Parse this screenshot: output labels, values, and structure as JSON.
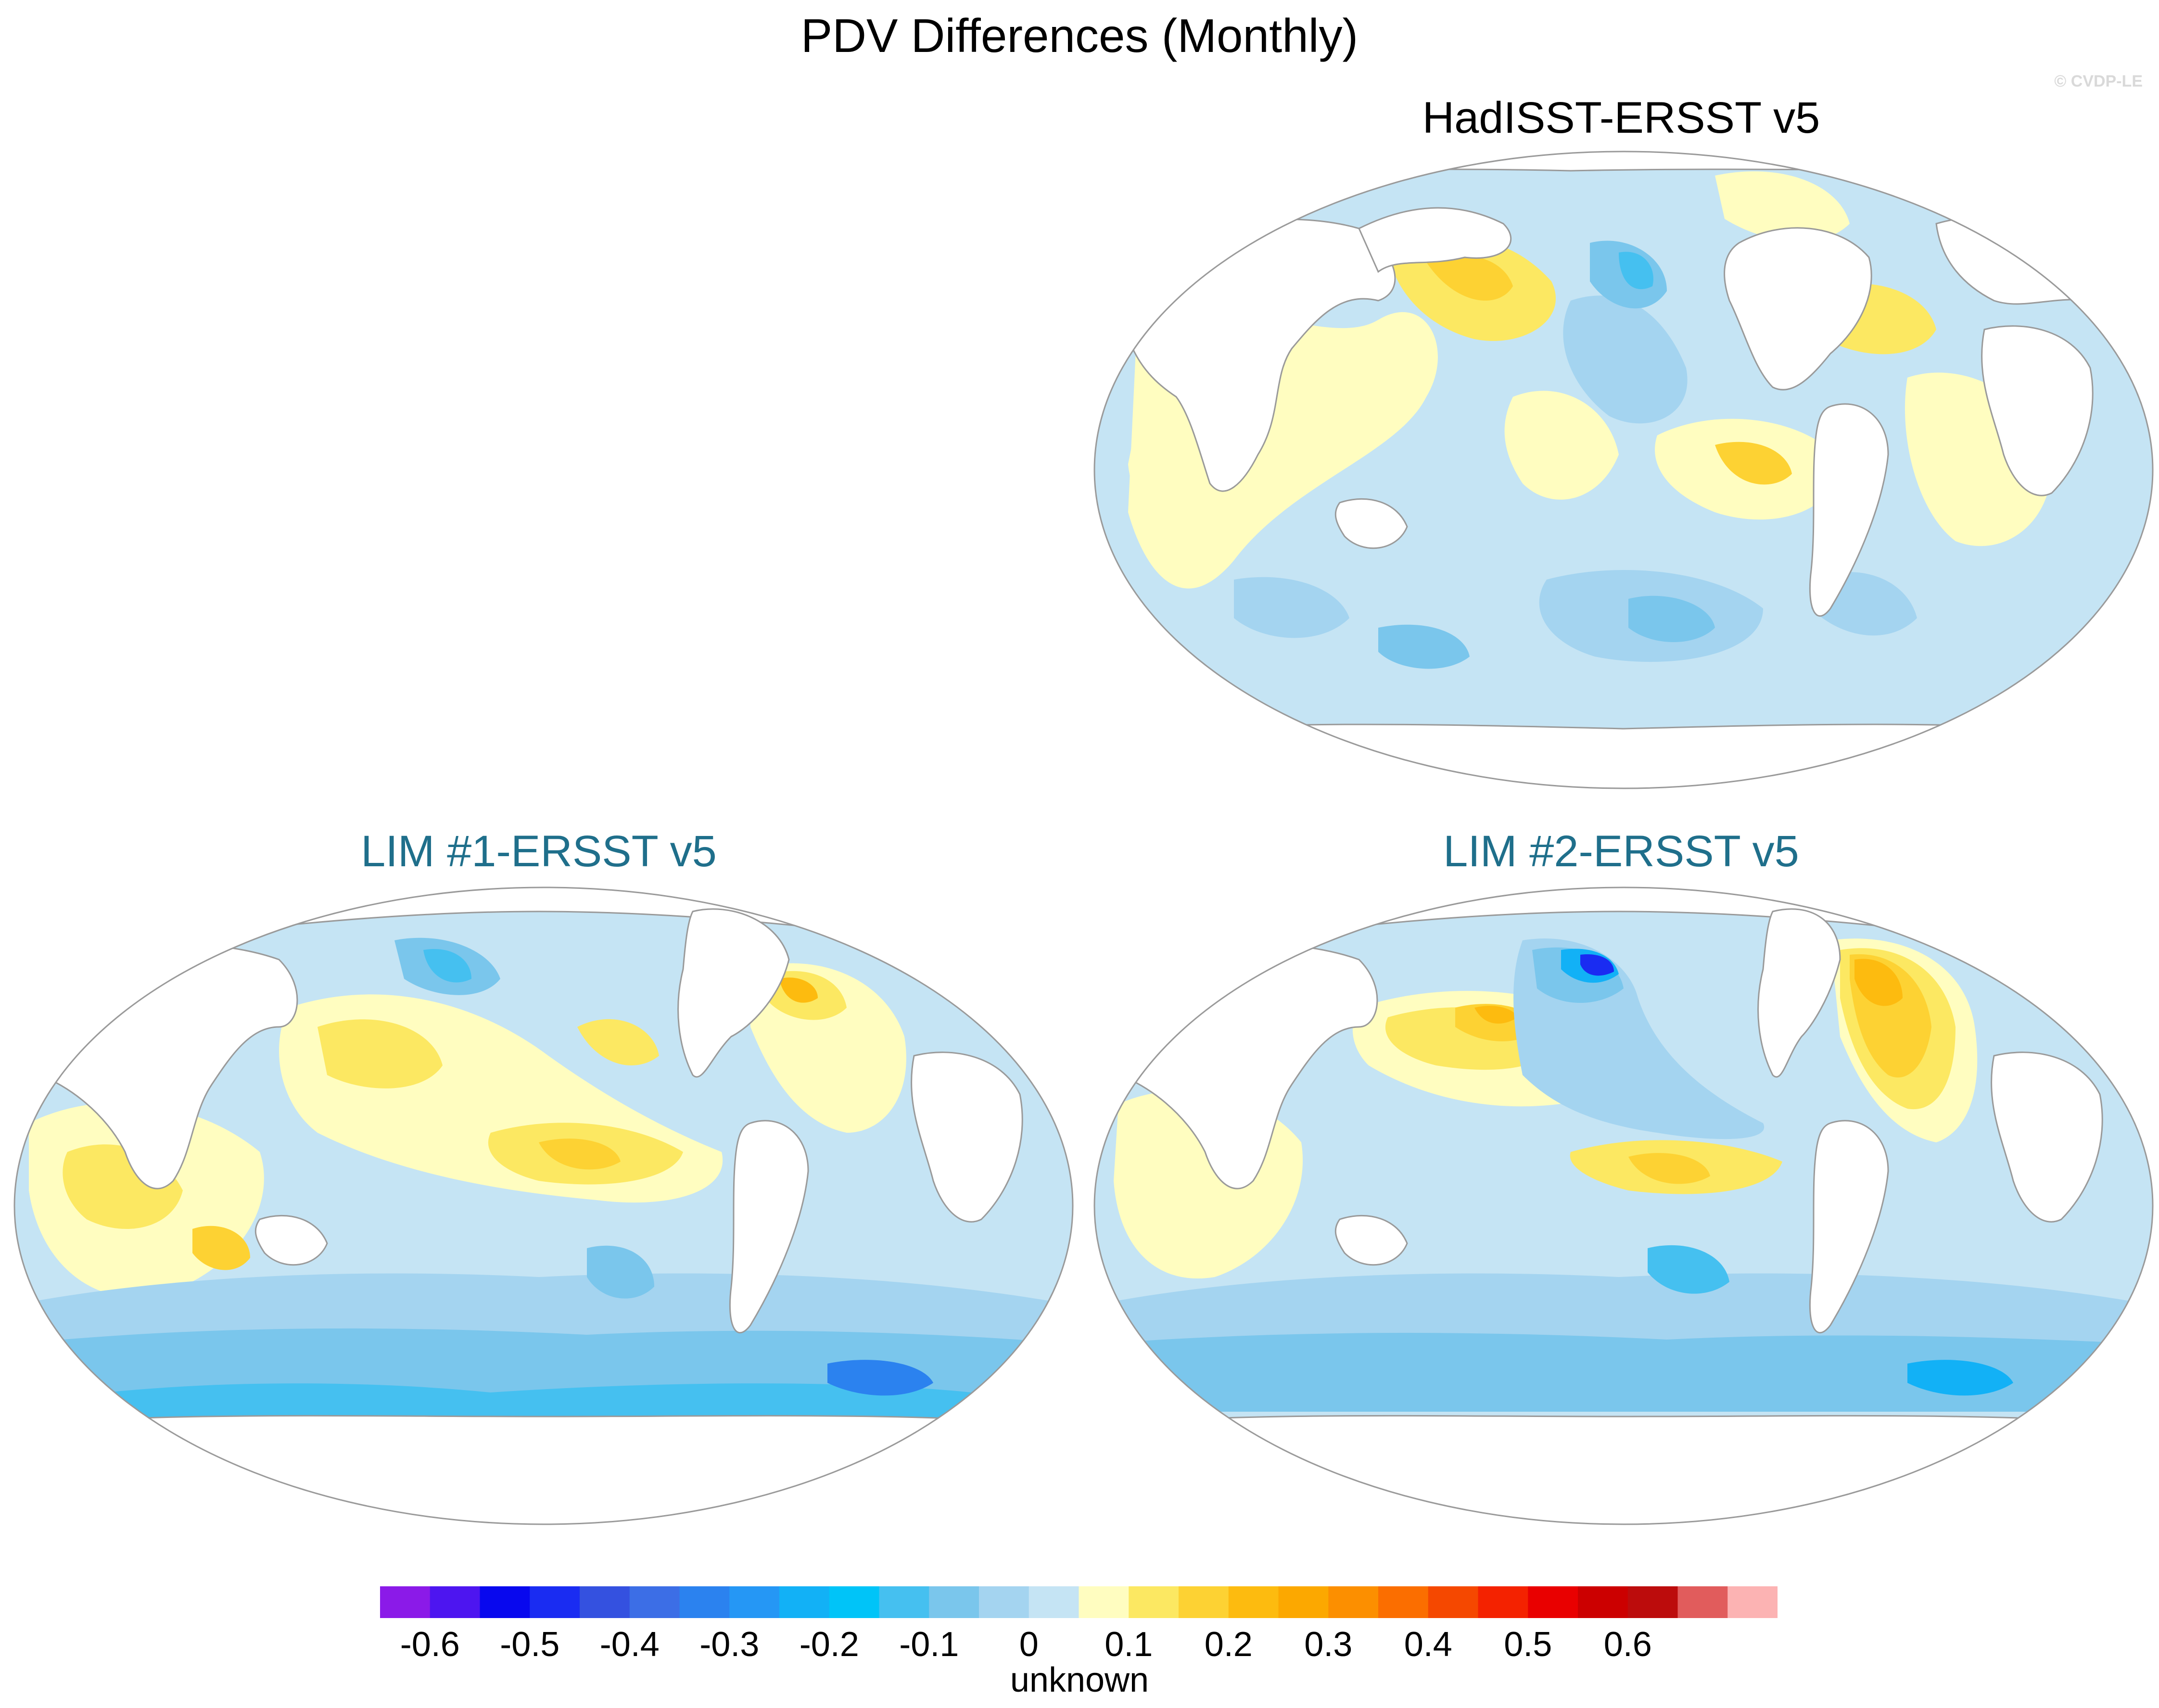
{
  "title": "PDV Differences (Monthly)",
  "watermark": "© CVDP-LE",
  "panels": [
    {
      "key": "had",
      "title": "HadISST-ERSST v5"
    },
    {
      "key": "lim1",
      "title": "LIM #1-ERSST v5"
    },
    {
      "key": "lim2",
      "title": "LIM #2-ERSST v5"
    }
  ],
  "colorbar": {
    "colors": [
      "#8b1ae8",
      "#4d15f0",
      "#0808ee",
      "#1a2cf2",
      "#3451e0",
      "#3c6ee6",
      "#2b82ef",
      "#2597f5",
      "#12b1f6",
      "#00c4f8",
      "#45c0f0",
      "#7ac6ec",
      "#a4d4f0",
      "#c5e4f4",
      "#fffdc0",
      "#fce862",
      "#fdd233",
      "#fdbb0f",
      "#fca800",
      "#fc8f00",
      "#fb6e00",
      "#f54800",
      "#f42200",
      "#e90000",
      "#cc0000",
      "#bc0c0c",
      "#e15c5c",
      "#fcb3b3"
    ],
    "tick_labels": [
      "-0.6",
      "-0.5",
      "-0.4",
      "-0.3",
      "-0.2",
      "-0.1",
      "0",
      "0.1",
      "0.2",
      "0.3",
      "0.4",
      "0.5",
      "0.6"
    ],
    "units": "unknown"
  },
  "map_colors": {
    "ocean_base": "#c5e4f4",
    "pos1": "#fffdc0",
    "pos2": "#fce862",
    "pos3": "#fdd233",
    "pos4": "#fdbb0f",
    "pos5": "#fca800",
    "neg1": "#a4d4f0",
    "neg2": "#7ac6ec",
    "neg3": "#45c0f0",
    "neg4": "#12b1f6",
    "neg5": "#2b82ef",
    "neg6": "#1a2cf2",
    "land": "#ffffff",
    "coast": "#9a9a9a",
    "frame": "#9a9a9a"
  }
}
